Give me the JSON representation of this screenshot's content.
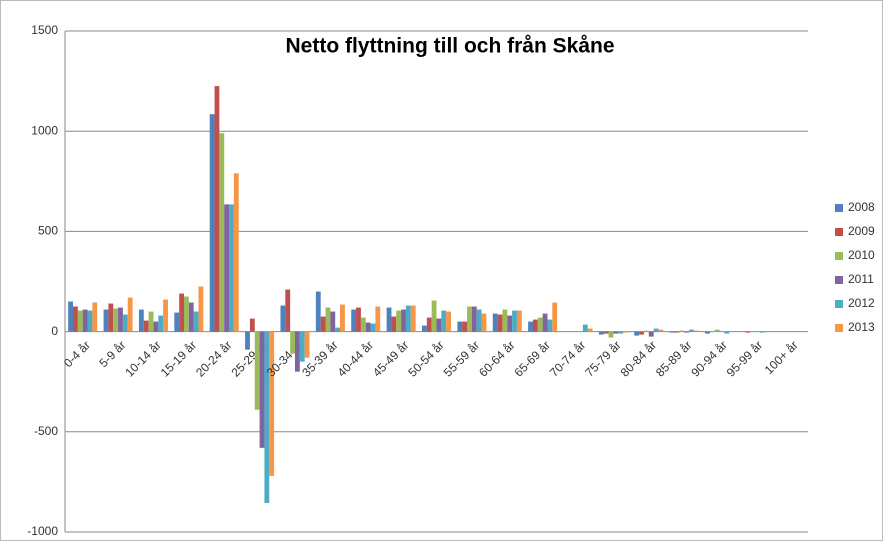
{
  "chart_data": {
    "type": "bar",
    "title": "Netto flyttning till och från Skåne",
    "categories": [
      "0-4 år",
      "5-9 år",
      "10-14 år",
      "15-19 år",
      "20-24 år",
      "25-29 år",
      "30-34 år",
      "35-39 år",
      "40-44 år",
      "45-49 år",
      "50-54 år",
      "55-59 år",
      "60-64 år",
      "65-69 år",
      "70-74 år",
      "75-79 år",
      "80-84 år",
      "85-89 år",
      "90-94 år",
      "95-99 år",
      "100+ år"
    ],
    "series": [
      {
        "name": "2008",
        "color": "#4F81BD",
        "values": [
          150,
          110,
          110,
          95,
          1085,
          -90,
          130,
          200,
          110,
          120,
          30,
          50,
          90,
          50,
          0,
          -15,
          -20,
          -5,
          -10,
          0,
          0
        ]
      },
      {
        "name": "2009",
        "color": "#C0504D",
        "values": [
          125,
          140,
          55,
          190,
          1225,
          65,
          210,
          75,
          120,
          75,
          70,
          50,
          85,
          60,
          0,
          -10,
          -15,
          -5,
          0,
          -5,
          0
        ]
      },
      {
        "name": "2010",
        "color": "#9BBB59",
        "values": [
          105,
          115,
          100,
          175,
          990,
          -390,
          -110,
          120,
          70,
          105,
          155,
          125,
          110,
          70,
          0,
          -30,
          5,
          5,
          10,
          0,
          0
        ]
      },
      {
        "name": "2011",
        "color": "#8064A2",
        "values": [
          110,
          120,
          50,
          145,
          635,
          -580,
          -200,
          100,
          45,
          110,
          65,
          125,
          80,
          90,
          0,
          -10,
          -25,
          -5,
          0,
          0,
          0
        ]
      },
      {
        "name": "2012",
        "color": "#4BACC6",
        "values": [
          105,
          85,
          80,
          100,
          635,
          -855,
          -150,
          20,
          40,
          130,
          105,
          110,
          105,
          60,
          35,
          -10,
          15,
          10,
          -10,
          -5,
          0
        ]
      },
      {
        "name": "2013",
        "color": "#F79646",
        "values": [
          145,
          170,
          160,
          225,
          790,
          -720,
          -130,
          135,
          125,
          130,
          100,
          90,
          105,
          145,
          15,
          -5,
          10,
          5,
          0,
          0,
          0
        ]
      }
    ],
    "ylim": [
      -1000,
      1500
    ],
    "yticks": [
      -1000,
      -500,
      0,
      500,
      1000,
      1500
    ],
    "grid": true,
    "legend": "right"
  }
}
